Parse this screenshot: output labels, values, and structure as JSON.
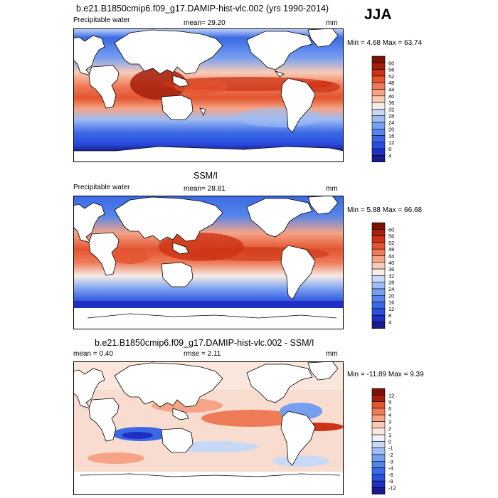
{
  "figure": {
    "main_title": "b.e21.B1850cmip6.f09_g17.DAMIP-hist-vlc.002 (yrs 1990-2014)",
    "season": "JJA"
  },
  "panels": [
    {
      "title": "",
      "left_label": "Precipitable water",
      "center_label": "mean=  29.20",
      "units": "mm",
      "stats": "Min =   4.68 Max =  63.74",
      "colorbar_labels": [
        "60",
        "56",
        "52",
        "48",
        "44",
        "40",
        "36",
        "32",
        "28",
        "24",
        "20",
        "16",
        "12",
        "8",
        "4"
      ]
    },
    {
      "title": "SSM/I",
      "left_label": "Precipitable water",
      "center_label": "mean=  28.81",
      "units": "mm",
      "stats": "Min =   5.88 Max =  66.68",
      "colorbar_labels": [
        "60",
        "56",
        "52",
        "48",
        "44",
        "40",
        "36",
        "32",
        "28",
        "24",
        "20",
        "16",
        "12",
        "8",
        "4"
      ]
    },
    {
      "title": "b.e21.B1850cmip6.f09_g17.DAMIP-hist-vlc.002 - SSM/I",
      "left_label": "mean =   0.40",
      "center_label": "rmse =   2.11",
      "units": "mm",
      "stats": "Min = -11.89 Max =   9.39",
      "colorbar_labels": [
        "12",
        "9",
        "6",
        "4",
        "3",
        "2",
        "1",
        "0",
        "-1",
        "-2",
        "-3",
        "-4",
        "-6",
        "-9",
        "-12"
      ]
    }
  ],
  "colors": {
    "abs_scale": [
      "#1a1a8c",
      "#1f2fc4",
      "#2a4ee0",
      "#3b69e6",
      "#5585ea",
      "#779ff0",
      "#9fbcf4",
      "#c8d9f8",
      "#f6ede8",
      "#f8cbb6",
      "#f5a486",
      "#ee7b58",
      "#e3542f",
      "#cc3314",
      "#a51f0b",
      "#7a1006"
    ],
    "diff_scale": [
      "#1a1a8c",
      "#1f2fc4",
      "#2a4ee0",
      "#3b69e6",
      "#5585ea",
      "#779ff0",
      "#9fbcf4",
      "#c8d9f8",
      "#eef3fb",
      "#fbe6dc",
      "#f8cbb6",
      "#f5a486",
      "#ee7b58",
      "#e3542f",
      "#a51f0b",
      "#7a1006"
    ],
    "land": "#ffffff",
    "coast": "#000000"
  }
}
